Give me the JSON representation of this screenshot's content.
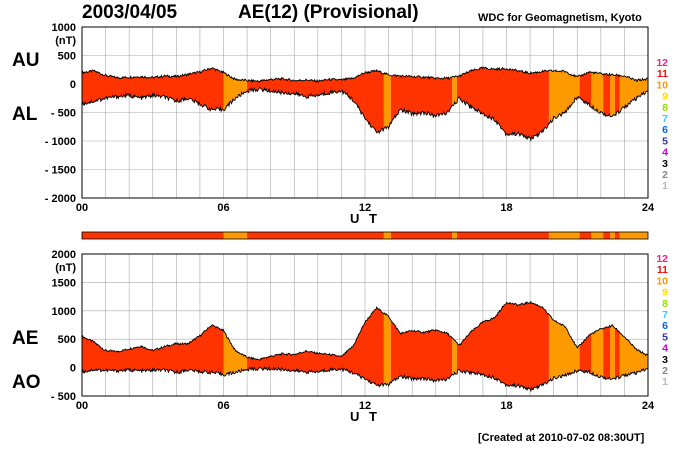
{
  "header": {
    "date": "2003/04/05",
    "title": "AE(12) (Provisional)",
    "source": "WDC for Geomagnetism, Kyoto"
  },
  "footer": {
    "created": "[Created at 2010-07-02 08:30UT]"
  },
  "colors": {
    "red": "#ff3300",
    "orange": "#ff9900",
    "grid": "#aaaaaa"
  },
  "legend": {
    "items": [
      {
        "label": "12",
        "color": "#ff1a8c"
      },
      {
        "label": "11",
        "color": "#ee1111"
      },
      {
        "label": "10",
        "color": "#ff9900"
      },
      {
        "label": "9",
        "color": "#ffdd00"
      },
      {
        "label": "8",
        "color": "#99dd00"
      },
      {
        "label": "7",
        "color": "#33ccff"
      },
      {
        "label": "6",
        "color": "#0066dd"
      },
      {
        "label": "5",
        "color": "#3333aa"
      },
      {
        "label": "4",
        "color": "#cc00cc"
      },
      {
        "label": "3",
        "color": "#000000"
      },
      {
        "label": "2",
        "color": "#888888"
      },
      {
        "label": "1",
        "color": "#bbbbbb"
      }
    ]
  },
  "chart_data": [
    {
      "type": "area",
      "panel": "top",
      "labels_left": [
        "AU",
        "AL"
      ],
      "ylabel": "(nT)",
      "xlabel": "U T",
      "ylim": [
        -2000,
        1000
      ],
      "yticks": [
        1000,
        500,
        0,
        -500,
        -1000,
        -1500,
        -2000
      ],
      "ytick_labels": [
        "1000",
        "500",
        "0",
        "- 500",
        "- 1000",
        "- 1500",
        "- 2000"
      ],
      "xlim": [
        0,
        24
      ],
      "xticks": [
        0,
        6,
        12,
        18,
        24
      ],
      "xtick_labels": [
        "00",
        "06",
        "12",
        "18",
        "24"
      ],
      "grid": true,
      "series": [
        {
          "name": "AU",
          "x": [
            0,
            0.5,
            1,
            1.5,
            2,
            2.5,
            3,
            3.5,
            4,
            4.5,
            5,
            5.5,
            6,
            6.5,
            7,
            7.5,
            8,
            8.5,
            9,
            9.5,
            10,
            10.5,
            11,
            11.5,
            12,
            12.5,
            13,
            13.5,
            14,
            14.5,
            15,
            15.5,
            16,
            16.5,
            17,
            17.5,
            18,
            18.5,
            19,
            19.5,
            20,
            20.5,
            21,
            21.5,
            22,
            22.5,
            23,
            23.5,
            24
          ],
          "y": [
            200,
            230,
            150,
            110,
            120,
            130,
            110,
            140,
            130,
            170,
            210,
            280,
            200,
            80,
            60,
            50,
            80,
            90,
            60,
            70,
            50,
            80,
            70,
            100,
            200,
            230,
            160,
            140,
            130,
            120,
            100,
            100,
            140,
            230,
            280,
            260,
            270,
            230,
            190,
            220,
            230,
            220,
            120,
            210,
            180,
            160,
            140,
            60,
            90
          ]
        },
        {
          "name": "AL",
          "x": [
            0,
            0.5,
            1,
            1.5,
            2,
            2.5,
            3,
            3.5,
            4,
            4.5,
            5,
            5.5,
            6,
            6.5,
            7,
            7.5,
            8,
            8.5,
            9,
            9.5,
            10,
            10.5,
            11,
            11.5,
            12,
            12.5,
            13,
            13.5,
            14,
            14.5,
            15,
            15.5,
            16,
            16.5,
            17,
            17.5,
            18,
            18.5,
            19,
            19.5,
            20,
            20.5,
            21,
            21.5,
            22,
            22.5,
            23,
            23.5,
            24
          ],
          "y": [
            -350,
            -300,
            -250,
            -220,
            -200,
            -250,
            -200,
            -230,
            -300,
            -250,
            -350,
            -450,
            -450,
            -250,
            -120,
            -90,
            -120,
            -150,
            -170,
            -220,
            -200,
            -150,
            -120,
            -280,
            -600,
            -850,
            -750,
            -450,
            -520,
            -500,
            -560,
            -500,
            -250,
            -400,
            -520,
            -620,
            -880,
            -870,
            -960,
            -850,
            -600,
            -500,
            -220,
            -360,
            -500,
            -580,
            -400,
            -260,
            -120
          ]
        }
      ]
    },
    {
      "type": "area",
      "panel": "bottom",
      "labels_left": [
        "AE",
        "AO"
      ],
      "ylabel": "(nT)",
      "xlabel": "U T",
      "ylim": [
        -500,
        2000
      ],
      "yticks": [
        2000,
        1500,
        1000,
        500,
        0,
        -500
      ],
      "ytick_labels": [
        "2000",
        "1500",
        "1000",
        "500",
        "0",
        "- 500"
      ],
      "xlim": [
        0,
        24
      ],
      "xticks": [
        0,
        6,
        12,
        18,
        24
      ],
      "xtick_labels": [
        "00",
        "06",
        "12",
        "18",
        "24"
      ],
      "grid": true,
      "series": [
        {
          "name": "AE",
          "x": [
            0,
            0.5,
            1,
            1.5,
            2,
            2.5,
            3,
            3.5,
            4,
            4.5,
            5,
            5.5,
            6,
            6.5,
            7,
            7.5,
            8,
            8.5,
            9,
            9.5,
            10,
            10.5,
            11,
            11.5,
            12,
            12.5,
            13,
            13.5,
            14,
            14.5,
            15,
            15.5,
            16,
            16.5,
            17,
            17.5,
            18,
            18.5,
            19,
            19.5,
            20,
            20.5,
            21,
            21.5,
            22,
            22.5,
            23,
            23.5,
            24
          ],
          "y": [
            550,
            450,
            300,
            280,
            330,
            380,
            300,
            370,
            420,
            420,
            560,
            750,
            650,
            300,
            180,
            140,
            200,
            240,
            230,
            290,
            250,
            230,
            190,
            380,
            800,
            1050,
            900,
            600,
            650,
            620,
            660,
            600,
            390,
            630,
            800,
            880,
            1150,
            1100,
            1150,
            1070,
            830,
            720,
            340,
            570,
            680,
            740,
            540,
            320,
            210
          ]
        },
        {
          "name": "AO",
          "x": [
            0,
            0.5,
            1,
            1.5,
            2,
            2.5,
            3,
            3.5,
            4,
            4.5,
            5,
            5.5,
            6,
            6.5,
            7,
            7.5,
            8,
            8.5,
            9,
            9.5,
            10,
            10.5,
            11,
            11.5,
            12,
            12.5,
            13,
            13.5,
            14,
            14.5,
            15,
            15.5,
            16,
            16.5,
            17,
            17.5,
            18,
            18.5,
            19,
            19.5,
            20,
            20.5,
            21,
            21.5,
            22,
            22.5,
            23,
            23.5,
            24
          ],
          "y": [
            -75,
            -35,
            -50,
            -55,
            -40,
            -60,
            -45,
            -45,
            -85,
            -40,
            -70,
            -85,
            -125,
            -85,
            -30,
            -20,
            -20,
            -30,
            -55,
            -75,
            -75,
            -35,
            -25,
            -90,
            -200,
            -310,
            -295,
            -155,
            -195,
            -190,
            -230,
            -200,
            -55,
            -85,
            -120,
            -180,
            -305,
            -320,
            -385,
            -315,
            -185,
            -140,
            -50,
            -75,
            -160,
            -210,
            -130,
            -100,
            -15
          ]
        }
      ]
    }
  ],
  "segments": [
    {
      "from": 0,
      "to": 6,
      "color": "red"
    },
    {
      "from": 6,
      "to": 7,
      "color": "orange"
    },
    {
      "from": 7,
      "to": 12.8,
      "color": "red"
    },
    {
      "from": 12.8,
      "to": 13.1,
      "color": "orange"
    },
    {
      "from": 13.1,
      "to": 15.7,
      "color": "red"
    },
    {
      "from": 15.7,
      "to": 15.9,
      "color": "orange"
    },
    {
      "from": 15.9,
      "to": 19.8,
      "color": "red"
    },
    {
      "from": 19.8,
      "to": 21.1,
      "color": "orange"
    },
    {
      "from": 21.1,
      "to": 21.6,
      "color": "red"
    },
    {
      "from": 21.6,
      "to": 22.1,
      "color": "orange"
    },
    {
      "from": 22.1,
      "to": 22.4,
      "color": "red"
    },
    {
      "from": 22.4,
      "to": 22.6,
      "color": "orange"
    },
    {
      "from": 22.6,
      "to": 22.8,
      "color": "red"
    },
    {
      "from": 22.8,
      "to": 24,
      "color": "orange"
    }
  ]
}
